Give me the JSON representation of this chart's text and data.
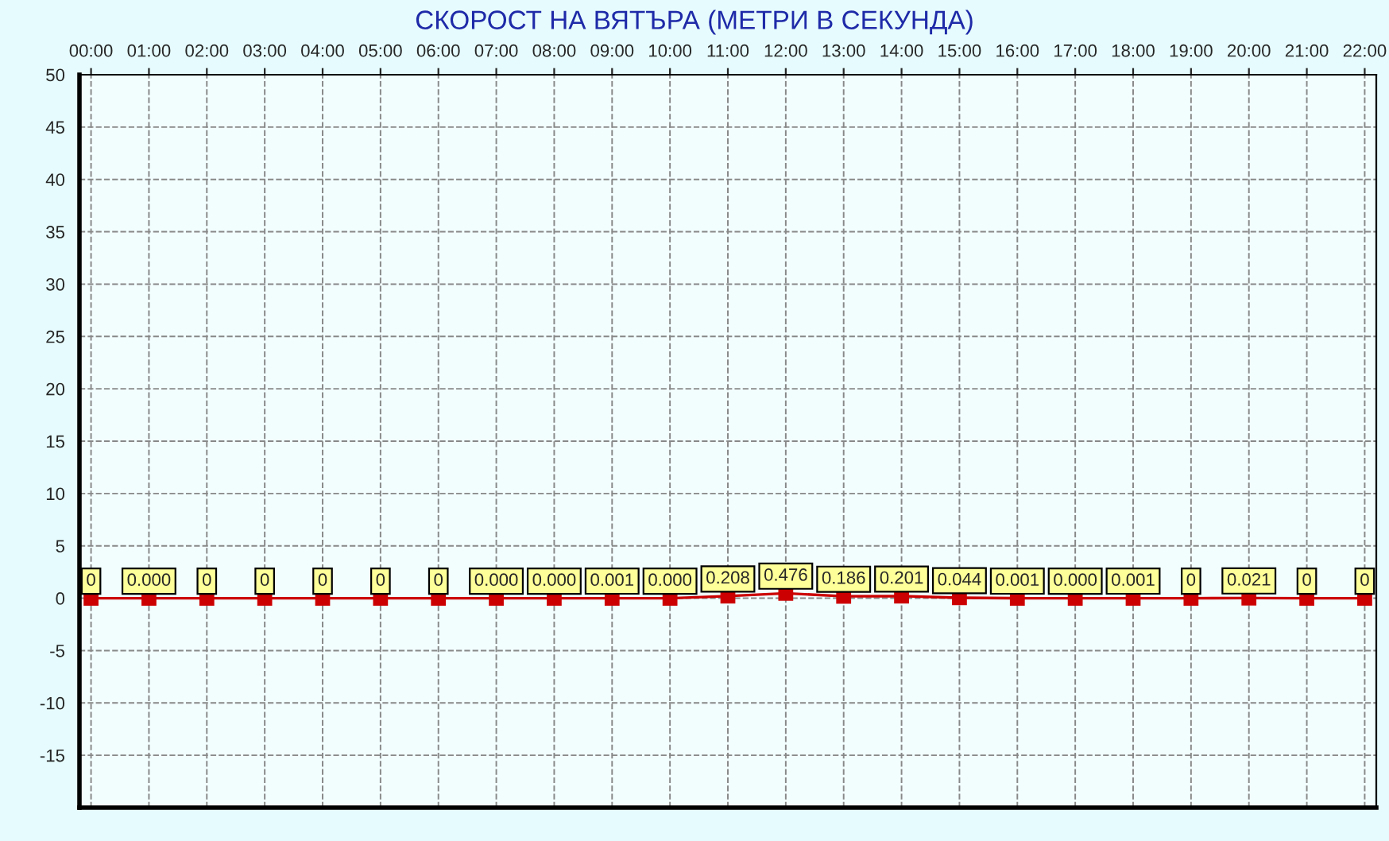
{
  "chart_data": {
    "type": "line",
    "title": "СКОРОСТ НА ВЯТЪРА (МЕТРИ В СЕКУНДА)",
    "categories": [
      "00:00",
      "01:00",
      "02:00",
      "03:00",
      "04:00",
      "05:00",
      "06:00",
      "07:00",
      "08:00",
      "09:00",
      "10:00",
      "11:00",
      "12:00",
      "13:00",
      "14:00",
      "15:00",
      "16:00",
      "17:00",
      "18:00",
      "19:00",
      "20:00",
      "21:00",
      "22:00"
    ],
    "series": [
      {
        "color": "#cc0000",
        "values": [
          0,
          0,
          0,
          0,
          0,
          0,
          0,
          0,
          0,
          0.001,
          0,
          0.208,
          0.476,
          0.186,
          0.201,
          0.044,
          0.001,
          0,
          0.001,
          0,
          0.021,
          0,
          0
        ],
        "value_labels": [
          "0",
          "0.000",
          "0",
          "0",
          "0",
          "0",
          "0",
          "0.000",
          "0.000",
          "0.001",
          "0.000",
          "0.208",
          "0.476",
          "0.186",
          "0.201",
          "0.044",
          "0.001",
          "0.000",
          "0.001",
          "0",
          "0.021",
          "0",
          "0"
        ]
      }
    ],
    "ylim": [
      -20,
      50
    ],
    "yticks": [
      -15,
      -10,
      -5,
      0,
      5,
      10,
      15,
      20,
      25,
      30,
      35,
      40,
      45,
      50
    ],
    "grid": true,
    "marker": "square",
    "line_style": "solid"
  }
}
